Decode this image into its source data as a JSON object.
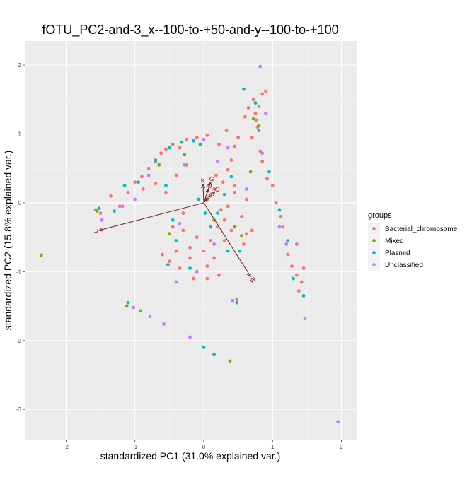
{
  "chart_data": {
    "type": "scatter",
    "title": "fOTU_PC2-and-3_x--100-to-+50-and-y--100-to-+100",
    "xlabel": "standardized PC1 (31.0% explained var.)",
    "ylabel": "standardized PC2 (15.8% explained var.)",
    "xlim": [
      -2.6,
      2.22
    ],
    "ylim": [
      -3.45,
      2.35
    ],
    "xticks": [
      -2,
      -1,
      0,
      1,
      2
    ],
    "yticks": [
      -3,
      -2,
      -1,
      0,
      1,
      2
    ],
    "xtick_labels": [
      "-2",
      "-1",
      "0",
      "1",
      "2"
    ],
    "ytick_labels": [
      "-3",
      "-2",
      "-1",
      "0",
      "1",
      "2"
    ],
    "grid": true,
    "legend": {
      "title": "groups",
      "position": "right",
      "items": [
        {
          "name": "Bacterial_chromosome",
          "color": "#F8766D"
        },
        {
          "name": "Mixed",
          "color": "#7CAE00"
        },
        {
          "name": "Plasmid",
          "color": "#00BFC4"
        },
        {
          "name": "Unclassified",
          "color": "#C77CFF"
        }
      ]
    },
    "arrows": [
      {
        "label": "L",
        "x": -1.52,
        "y": -0.4
      },
      {
        "label": "M",
        "x": 0.68,
        "y": -1.07
      },
      {
        "label": "K",
        "x": -0.01,
        "y": 0.27
      },
      {
        "label": "G",
        "x": 0.1,
        "y": 0.3
      },
      {
        "label": "O",
        "x": 0.16,
        "y": 0.16
      },
      {
        "label": "I",
        "x": 0.05,
        "y": 0.07
      },
      {
        "label": "C",
        "x": 0.07,
        "y": 0.2
      }
    ],
    "arrow_color": "#7f1a1a",
    "series": [
      {
        "name": "Bacterial_chromosome",
        "color": "#F8766D",
        "points": [
          [
            -1.57,
            -0.1
          ],
          [
            -1.5,
            -0.15
          ],
          [
            -1.35,
            0.1
          ],
          [
            -1.22,
            -0.05
          ],
          [
            -1.1,
            0.15
          ],
          [
            -1.0,
            0.3
          ],
          [
            -0.9,
            0.38
          ],
          [
            -0.8,
            0.5
          ],
          [
            -0.7,
            0.6
          ],
          [
            -0.62,
            0.72
          ],
          [
            -0.55,
            0.78
          ],
          [
            -0.45,
            0.85
          ],
          [
            -0.35,
            0.8
          ],
          [
            -0.25,
            0.92
          ],
          [
            -0.1,
            0.95
          ],
          [
            0.05,
            0.98
          ],
          [
            -0.88,
            0.2
          ],
          [
            -0.7,
            0.28
          ],
          [
            -0.55,
            0.15
          ],
          [
            -0.4,
            0.4
          ],
          [
            -0.25,
            0.55
          ],
          [
            0.22,
            0.85
          ],
          [
            0.33,
            1.05
          ],
          [
            0.45,
            0.82
          ],
          [
            0.4,
            0.62
          ],
          [
            0.5,
            0.95
          ],
          [
            0.6,
            1.25
          ],
          [
            0.65,
            1.38
          ],
          [
            0.75,
            1.3
          ],
          [
            0.72,
            1.5
          ],
          [
            0.85,
            1.58
          ],
          [
            0.78,
            1.1
          ],
          [
            0.82,
            0.75
          ],
          [
            0.85,
            0.6
          ],
          [
            0.92,
            0.35
          ],
          [
            1.0,
            0.25
          ],
          [
            1.05,
            0.0
          ],
          [
            1.12,
            -0.2
          ],
          [
            1.15,
            -0.35
          ],
          [
            1.2,
            -0.6
          ],
          [
            1.22,
            -0.75
          ],
          [
            1.28,
            -0.92
          ],
          [
            1.35,
            -1.05
          ],
          [
            1.42,
            -1.15
          ],
          [
            1.45,
            -0.95
          ],
          [
            1.38,
            -1.28
          ],
          [
            0.7,
            0.95
          ],
          [
            0.76,
            1.2
          ],
          [
            0.8,
            1.4
          ],
          [
            0.9,
            1.62
          ],
          [
            0.1,
            0.1
          ],
          [
            0.15,
            0.2
          ],
          [
            0.25,
            -0.1
          ],
          [
            0.3,
            -0.25
          ],
          [
            0.35,
            -0.05
          ],
          [
            0.45,
            0.15
          ],
          [
            0.55,
            -0.2
          ],
          [
            0.62,
            -0.45
          ],
          [
            0.4,
            -0.4
          ],
          [
            0.2,
            -0.35
          ],
          [
            0.1,
            -0.55
          ],
          [
            0.0,
            -0.7
          ],
          [
            -0.1,
            -0.5
          ],
          [
            -0.2,
            -0.65
          ],
          [
            -0.3,
            -0.4
          ],
          [
            -0.4,
            -0.7
          ],
          [
            -0.5,
            -0.85
          ],
          [
            -0.35,
            -0.95
          ],
          [
            -0.2,
            -0.8
          ],
          [
            0.05,
            -0.92
          ],
          [
            0.15,
            -0.8
          ],
          [
            0.3,
            -0.55
          ],
          [
            -0.15,
            -1.1
          ],
          [
            0.05,
            -1.1
          ],
          [
            0.22,
            -1.05
          ],
          [
            0.48,
            -1.4
          ],
          [
            -0.6,
            -0.75
          ],
          [
            -0.45,
            -0.35
          ],
          [
            -0.3,
            -0.15
          ],
          [
            0.18,
            0.4
          ],
          [
            0.28,
            0.3
          ],
          [
            0.35,
            0.48
          ],
          [
            0.45,
            0.25
          ],
          [
            0.62,
            0.05
          ],
          [
            0.7,
            -0.4
          ],
          [
            0.58,
            -0.6
          ]
        ]
      },
      {
        "name": "Mixed",
        "color": "#7CAE00",
        "points": [
          [
            -2.36,
            -0.76
          ],
          [
            -1.55,
            -0.12
          ],
          [
            -1.12,
            -1.5
          ],
          [
            -0.92,
            -1.57
          ],
          [
            -0.65,
            0.55
          ],
          [
            -0.5,
            -0.45
          ],
          [
            -0.28,
            0.7
          ],
          [
            0.15,
            -0.25
          ],
          [
            0.38,
            -2.3
          ],
          [
            0.68,
            0.45
          ],
          [
            0.72,
            1.22
          ],
          [
            0.8,
            1.12
          ],
          [
            0.05,
            0.05
          ],
          [
            0.45,
            -0.35
          ],
          [
            0.55,
            -0.48
          ]
        ]
      },
      {
        "name": "Plasmid",
        "color": "#00BFC4",
        "points": [
          [
            -1.52,
            -0.08
          ],
          [
            -1.3,
            -0.12
          ],
          [
            -1.15,
            0.25
          ],
          [
            -1.1,
            -1.45
          ],
          [
            -0.95,
            0.3
          ],
          [
            -0.7,
            0.62
          ],
          [
            -0.5,
            0.8
          ],
          [
            -0.32,
            0.88
          ],
          [
            -0.15,
            0.9
          ],
          [
            -0.05,
            0.85
          ],
          [
            0.0,
            -2.1
          ],
          [
            0.15,
            -2.2
          ],
          [
            -0.55,
            0.25
          ],
          [
            -0.45,
            -0.25
          ],
          [
            -0.4,
            -0.55
          ],
          [
            -0.52,
            -0.9
          ],
          [
            -0.2,
            -0.95
          ],
          [
            0.1,
            -0.35
          ],
          [
            0.2,
            -0.15
          ],
          [
            0.35,
            -0.7
          ],
          [
            0.48,
            -1.45
          ],
          [
            0.52,
            -0.7
          ],
          [
            0.58,
            1.65
          ],
          [
            0.75,
            1.45
          ],
          [
            0.8,
            1.05
          ],
          [
            0.95,
            0.45
          ],
          [
            1.1,
            -0.1
          ],
          [
            1.22,
            -0.55
          ],
          [
            1.3,
            -1.1
          ],
          [
            1.45,
            -1.35
          ],
          [
            0.3,
            0.12
          ],
          [
            0.4,
            0.38
          ],
          [
            0.02,
            -0.15
          ],
          [
            -0.08,
            0.05
          ]
        ]
      },
      {
        "name": "Unclassified",
        "color": "#C77CFF",
        "points": [
          [
            -1.48,
            -0.25
          ],
          [
            -1.18,
            -0.05
          ],
          [
            -1.02,
            -1.52
          ],
          [
            -0.78,
            -1.65
          ],
          [
            -0.58,
            -1.76
          ],
          [
            -0.28,
            0.55
          ],
          [
            -0.2,
            -1.95
          ],
          [
            -0.4,
            -1.15
          ],
          [
            -0.1,
            -1.0
          ],
          [
            0.42,
            -1.42
          ],
          [
            0.62,
            0.2
          ],
          [
            0.82,
            1.98
          ],
          [
            1.1,
            -0.35
          ],
          [
            1.2,
            -0.6
          ],
          [
            1.35,
            -0.6
          ],
          [
            1.47,
            -1.68
          ],
          [
            1.95,
            -3.18
          ],
          [
            -0.8,
            0.4
          ],
          [
            -1.0,
            0.05
          ],
          [
            0.85,
            0.72
          ],
          [
            0.9,
            1.3
          ],
          [
            0.15,
            -0.6
          ],
          [
            0.35,
            0.8
          ],
          [
            0.2,
            0.6
          ],
          [
            -0.35,
            -0.3
          ],
          [
            0.0,
            0.92
          ]
        ]
      }
    ]
  }
}
